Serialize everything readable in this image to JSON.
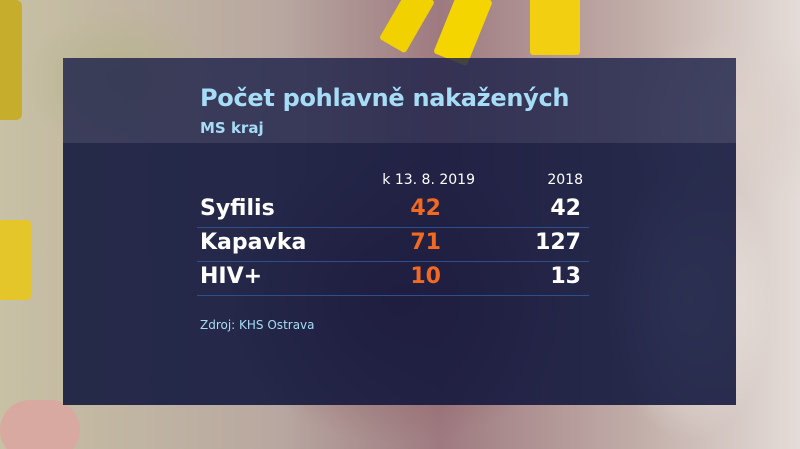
{
  "graphic": {
    "title": "Počet pohlavně nakažených",
    "subtitle": "MS kraj",
    "columns": [
      "k 13. 8. 2019",
      "2018"
    ],
    "rows": [
      {
        "label": "Syfilis",
        "current": "42",
        "previous": "42"
      },
      {
        "label": "Kapavka",
        "current": "71",
        "previous": "127"
      },
      {
        "label": "HIV+",
        "current": "10",
        "previous": "13"
      }
    ],
    "source": "Zdroj: KHS Ostrava",
    "colors": {
      "title": "#a6dcf6",
      "current_values": "#f26a21",
      "previous_values": "#ffffff",
      "panel": "#10163c"
    }
  },
  "chart_data": {
    "type": "table",
    "title": "Počet pohlavně nakažených",
    "subtitle": "MS kraj",
    "columns": [
      "",
      "k 13. 8. 2019",
      "2018"
    ],
    "categories": [
      "Syfilis",
      "Kapavka",
      "HIV+"
    ],
    "series": [
      {
        "name": "k 13. 8. 2019",
        "values": [
          42,
          71,
          10
        ]
      },
      {
        "name": "2018",
        "values": [
          42,
          127,
          13
        ]
      }
    ],
    "source": "Zdroj: KHS Ostrava"
  }
}
